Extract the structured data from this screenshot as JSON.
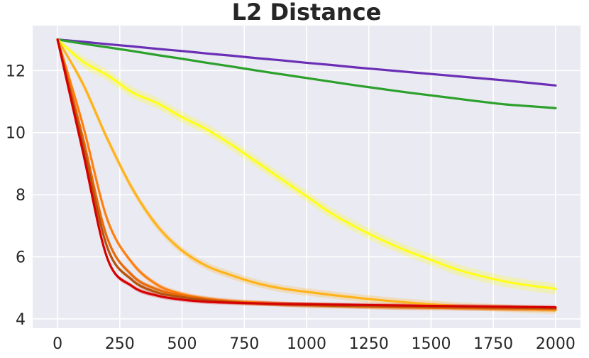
{
  "chart_data": {
    "type": "line",
    "title": "L2 Distance",
    "xlabel": "",
    "ylabel": "",
    "xlim": [
      -100,
      2100
    ],
    "ylim": [
      3.7,
      13.45
    ],
    "xticks": [
      0,
      250,
      500,
      750,
      1000,
      1250,
      1500,
      1750,
      2000
    ],
    "yticks": [
      4,
      6,
      8,
      10,
      12
    ],
    "grid": true,
    "legend": "none",
    "background": "#eaeaf2",
    "gridcolor": "#ffffff",
    "x": [
      0,
      100,
      200,
      300,
      400,
      500,
      600,
      700,
      800,
      900,
      1000,
      1100,
      1200,
      1300,
      1400,
      1500,
      1600,
      1700,
      1800,
      1900,
      2000
    ],
    "series": [
      {
        "color": "#6a2fb5",
        "band": 0.03,
        "values": [
          13.0,
          12.93,
          12.85,
          12.78,
          12.7,
          12.63,
          12.55,
          12.48,
          12.4,
          12.33,
          12.25,
          12.18,
          12.1,
          12.03,
          11.96,
          11.89,
          11.82,
          11.75,
          11.68,
          11.6,
          11.52
        ]
      },
      {
        "color": "#2ca02c",
        "band": 0.03,
        "values": [
          13.0,
          12.87,
          12.75,
          12.63,
          12.5,
          12.38,
          12.25,
          12.13,
          12.0,
          11.88,
          11.76,
          11.64,
          11.52,
          11.41,
          11.3,
          11.2,
          11.1,
          11.0,
          10.91,
          10.85,
          10.79
        ]
      },
      {
        "color": "#ffff1a",
        "band": 0.18,
        "values": [
          13.0,
          12.3,
          11.85,
          11.3,
          10.95,
          10.5,
          10.1,
          9.6,
          9.05,
          8.5,
          7.95,
          7.4,
          6.95,
          6.55,
          6.2,
          5.9,
          5.6,
          5.38,
          5.2,
          5.07,
          4.97
        ]
      },
      {
        "color": "#ffb31a",
        "band": 0.12,
        "values": [
          13.0,
          11.6,
          9.8,
          8.2,
          7.0,
          6.2,
          5.7,
          5.4,
          5.15,
          4.98,
          4.87,
          4.77,
          4.68,
          4.6,
          4.53,
          4.47,
          4.42,
          4.38,
          4.34,
          4.31,
          4.28
        ]
      },
      {
        "color": "#ff7f0e",
        "band": 0.08,
        "values": [
          13.0,
          10.3,
          7.2,
          5.8,
          5.1,
          4.8,
          4.65,
          4.57,
          4.52,
          4.48,
          4.45,
          4.43,
          4.41,
          4.39,
          4.37,
          4.36,
          4.35,
          4.34,
          4.33,
          4.32,
          4.31
        ]
      },
      {
        "color": "#e86a0a",
        "band": 0.08,
        "values": [
          13.0,
          9.9,
          6.6,
          5.4,
          4.95,
          4.75,
          4.63,
          4.55,
          4.5,
          4.47,
          4.44,
          4.42,
          4.4,
          4.38,
          4.37,
          4.36,
          4.35,
          4.34,
          4.33,
          4.32,
          4.31
        ]
      },
      {
        "color": "#b5530c",
        "band": 0.07,
        "values": [
          13.0,
          9.7,
          6.3,
          5.25,
          4.85,
          4.7,
          4.6,
          4.54,
          4.5,
          4.47,
          4.45,
          4.43,
          4.42,
          4.41,
          4.4,
          4.39,
          4.38,
          4.37,
          4.36,
          4.35,
          4.34
        ]
      },
      {
        "color": "#d60000",
        "band": 0.07,
        "values": [
          13.0,
          9.45,
          5.95,
          5.05,
          4.75,
          4.62,
          4.55,
          4.52,
          4.5,
          4.48,
          4.47,
          4.46,
          4.45,
          4.44,
          4.43,
          4.42,
          4.41,
          4.4,
          4.39,
          4.38,
          4.37
        ]
      }
    ]
  }
}
